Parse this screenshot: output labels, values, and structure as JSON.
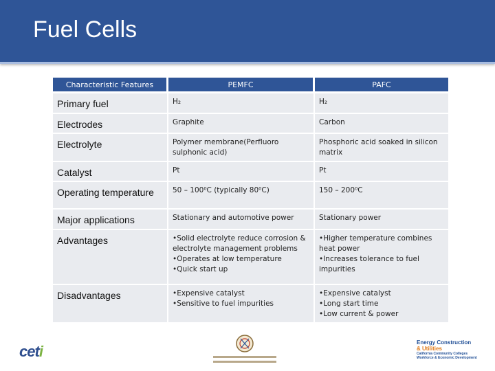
{
  "slide": {
    "title": "Fuel Cells"
  },
  "table": {
    "headers": [
      "Characteristic Features",
      "PEMFC",
      "PAFC"
    ],
    "rows": [
      {
        "feature": "Primary fuel",
        "pemfc": [
          "H₂"
        ],
        "pafc": [
          "H₂"
        ]
      },
      {
        "feature": "Electrodes",
        "pemfc": [
          "Graphite"
        ],
        "pafc": [
          "Carbon"
        ]
      },
      {
        "feature": "Electrolyte",
        "pemfc": [
          "Polymer membrane(Perfluoro sulphonic acid)"
        ],
        "pafc": [
          "Phosphoric acid soaked in silicon matrix"
        ]
      },
      {
        "feature": "Catalyst",
        "pemfc": [
          "Pt"
        ],
        "pafc": [
          "Pt"
        ]
      },
      {
        "feature": "Operating temperature",
        "pemfc": [
          "50 – 100⁰C (typically 80⁰C)"
        ],
        "pafc": [
          "150 – 200⁰C"
        ]
      },
      {
        "feature": "Major applications",
        "pemfc": [
          "Stationary and automotive power"
        ],
        "pafc": [
          "Stationary power"
        ]
      },
      {
        "feature": "Advantages",
        "pemfc": [
          "•Solid electrolyte reduce corrosion & electrolyte management problems",
          "•Operates at low temperature",
          "•Quick start up"
        ],
        "pafc": [
          "•Higher temperature combines heat power",
          "•Increases tolerance to fuel impurities"
        ]
      },
      {
        "feature": "Disadvantages",
        "pemfc": [
          "•Expensive catalyst",
          "•Sensitive to fuel impurities"
        ],
        "pafc": [
          "•Expensive catalyst",
          "•Long start time",
          "•Low current & power"
        ]
      }
    ]
  },
  "footer": {
    "ceti_logo_text": "ceti",
    "energy_logo": {
      "line1": "Energy Construction",
      "line2": "& Utilities",
      "line3": "California Community Colleges",
      "line4": "Workforce & Economic Development"
    },
    "colors": {
      "header_blue": "#2f5597",
      "cell_gray": "#e9ebef"
    }
  }
}
